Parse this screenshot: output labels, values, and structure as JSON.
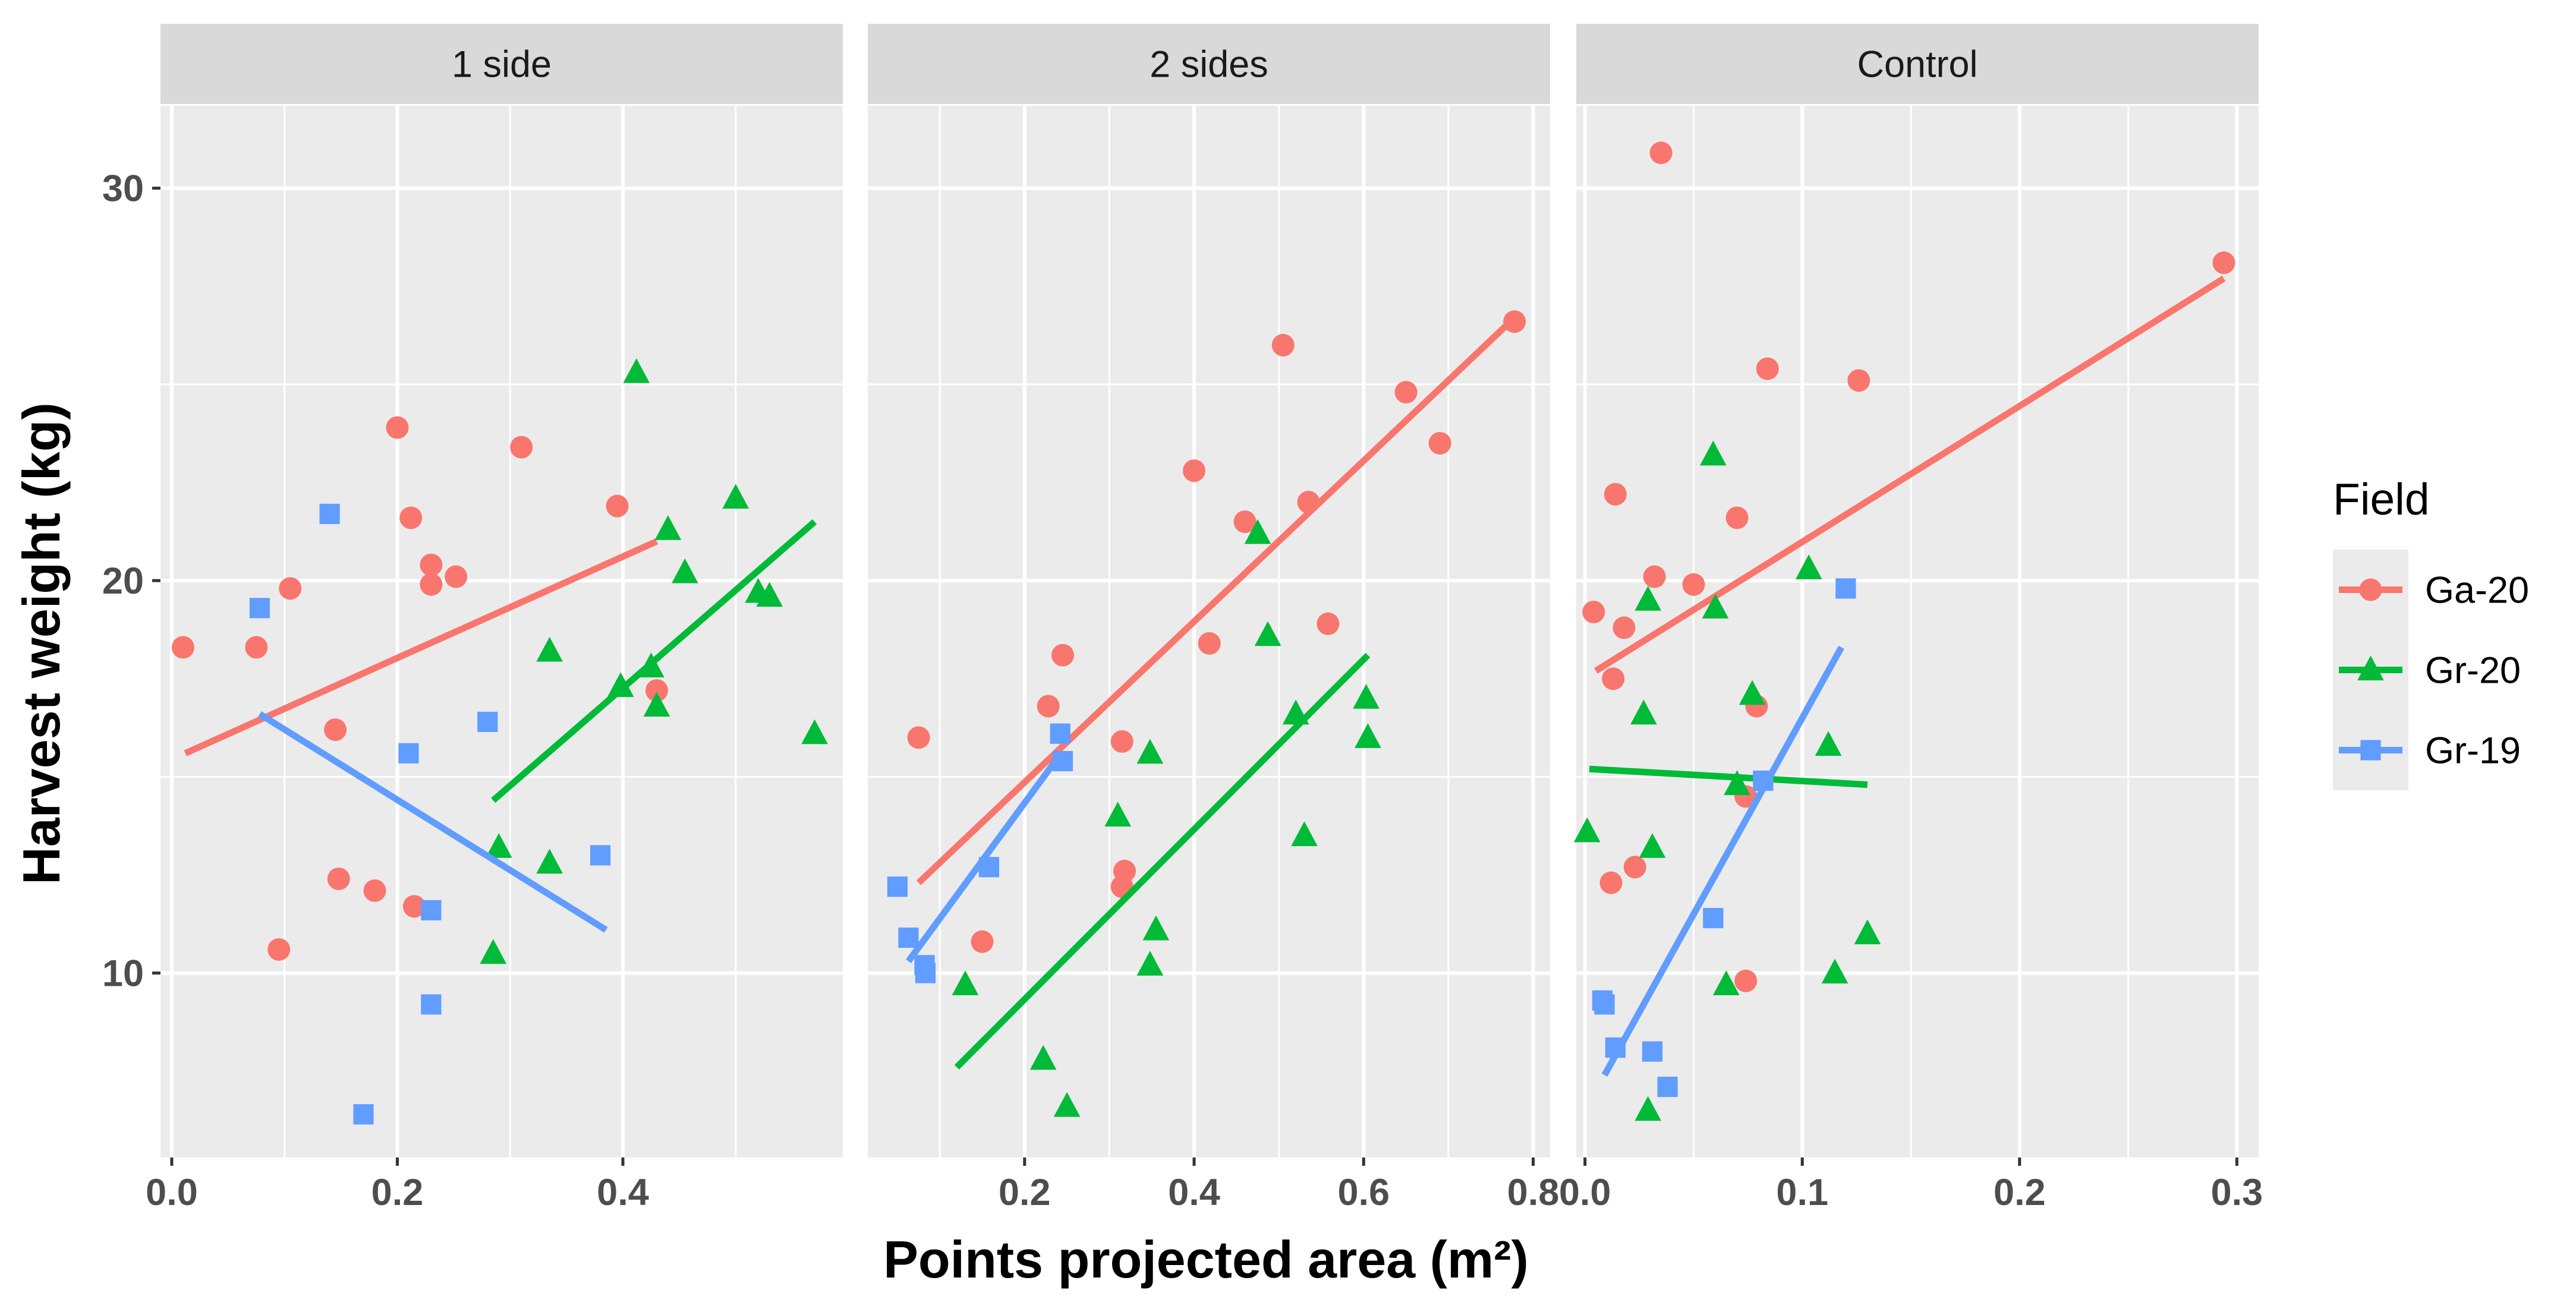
{
  "chart_data": {
    "type": "scatter",
    "xlabel": "Points projected area (m²)",
    "ylabel": "Harvest weight (kg)",
    "ylim": [
      5.3,
      32.1
    ],
    "yticks": [
      10,
      20,
      30
    ],
    "y_tick_labels": [
      "10",
      "20",
      "30"
    ],
    "grid": true,
    "legend": {
      "title": "Field",
      "position": "right",
      "entries": [
        {
          "label": "Ga-20",
          "color": "#F8766D",
          "shape": "circle"
        },
        {
          "label": "Gr-20",
          "color": "#00BA38",
          "shape": "triangle"
        },
        {
          "label": "Gr-19",
          "color": "#619CFF",
          "shape": "square"
        }
      ]
    },
    "panels": [
      {
        "title": "1 side",
        "xlim": [
          -0.01,
          0.595
        ],
        "xticks": [
          0.0,
          0.2,
          0.4
        ],
        "x_tick_labels": [
          "0.0",
          "0.2",
          "0.4"
        ],
        "series": [
          {
            "name": "Ga-20",
            "points": [
              [
                0.01,
                18.3
              ],
              [
                0.075,
                18.3
              ],
              [
                0.095,
                10.6
              ],
              [
                0.105,
                19.8
              ],
              [
                0.145,
                16.2
              ],
              [
                0.148,
                12.4
              ],
              [
                0.18,
                12.1
              ],
              [
                0.2,
                23.9
              ],
              [
                0.212,
                21.6
              ],
              [
                0.215,
                11.7
              ],
              [
                0.23,
                20.4
              ],
              [
                0.23,
                19.9
              ],
              [
                0.252,
                20.1
              ],
              [
                0.31,
                23.4
              ],
              [
                0.395,
                21.9
              ],
              [
                0.43,
                17.2
              ]
            ],
            "fit": [
              [
                0.012,
                15.6
              ],
              [
                0.43,
                21.0
              ]
            ]
          },
          {
            "name": "Gr-20",
            "points": [
              [
                0.285,
                10.5
              ],
              [
                0.29,
                13.2
              ],
              [
                0.335,
                12.8
              ],
              [
                0.335,
                18.2
              ],
              [
                0.398,
                17.3
              ],
              [
                0.412,
                25.3
              ],
              [
                0.425,
                17.8
              ],
              [
                0.43,
                16.8
              ],
              [
                0.44,
                21.3
              ],
              [
                0.455,
                20.2
              ],
              [
                0.5,
                22.1
              ],
              [
                0.52,
                19.7
              ],
              [
                0.53,
                19.6
              ],
              [
                0.57,
                16.1
              ]
            ],
            "fit": [
              [
                0.285,
                14.4
              ],
              [
                0.57,
                21.5
              ]
            ]
          },
          {
            "name": "Gr-19",
            "points": [
              [
                0.078,
                19.3
              ],
              [
                0.14,
                21.7
              ],
              [
                0.17,
                6.4
              ],
              [
                0.21,
                15.6
              ],
              [
                0.23,
                9.2
              ],
              [
                0.23,
                11.6
              ],
              [
                0.28,
                16.4
              ],
              [
                0.38,
                13.0
              ]
            ],
            "fit": [
              [
                0.078,
                16.6
              ],
              [
                0.385,
                11.1
              ]
            ]
          }
        ]
      },
      {
        "title": "2 sides",
        "xlim": [
          0.015,
          0.82
        ],
        "xticks": [
          0.2,
          0.4,
          0.6,
          0.8
        ],
        "x_tick_labels": [
          "0.2",
          "0.4",
          "0.6",
          "0.8"
        ],
        "series": [
          {
            "name": "Ga-20",
            "points": [
              [
                0.075,
                16.0
              ],
              [
                0.15,
                10.8
              ],
              [
                0.228,
                16.8
              ],
              [
                0.245,
                18.1
              ],
              [
                0.315,
                12.2
              ],
              [
                0.318,
                12.6
              ],
              [
                0.315,
                15.9
              ],
              [
                0.4,
                22.8
              ],
              [
                0.418,
                18.4
              ],
              [
                0.46,
                21.5
              ],
              [
                0.505,
                26.0
              ],
              [
                0.535,
                22.0
              ],
              [
                0.558,
                18.9
              ],
              [
                0.65,
                24.8
              ],
              [
                0.69,
                23.5
              ],
              [
                0.778,
                26.6
              ]
            ],
            "fit": [
              [
                0.075,
                12.3
              ],
              [
                0.778,
                26.7
              ]
            ]
          },
          {
            "name": "Gr-20",
            "points": [
              [
                0.13,
                9.7
              ],
              [
                0.222,
                7.8
              ],
              [
                0.25,
                6.6
              ],
              [
                0.31,
                14.0
              ],
              [
                0.348,
                15.6
              ],
              [
                0.348,
                10.2
              ],
              [
                0.355,
                11.1
              ],
              [
                0.475,
                21.2
              ],
              [
                0.487,
                18.6
              ],
              [
                0.52,
                16.6
              ],
              [
                0.53,
                13.5
              ],
              [
                0.603,
                17.0
              ],
              [
                0.605,
                16.0
              ]
            ],
            "fit": [
              [
                0.12,
                7.6
              ],
              [
                0.605,
                18.1
              ]
            ]
          },
          {
            "name": "Gr-19",
            "points": [
              [
                0.05,
                12.2
              ],
              [
                0.063,
                10.9
              ],
              [
                0.082,
                10.2
              ],
              [
                0.083,
                10.0
              ],
              [
                0.158,
                12.7
              ],
              [
                0.242,
                16.1
              ],
              [
                0.245,
                15.4
              ]
            ],
            "fit": [
              [
                0.063,
                10.3
              ],
              [
                0.243,
                15.6
              ]
            ]
          }
        ]
      },
      {
        "title": "Control",
        "xlim": [
          -0.004,
          0.31
        ],
        "xticks": [
          0.0,
          0.1,
          0.2,
          0.3
        ],
        "x_tick_labels": [
          "0.0",
          "0.1",
          "0.2",
          "0.3"
        ],
        "series": [
          {
            "name": "Ga-20",
            "points": [
              [
                0.004,
                19.2
              ],
              [
                0.012,
                12.3
              ],
              [
                0.013,
                17.5
              ],
              [
                0.014,
                22.2
              ],
              [
                0.018,
                18.8
              ],
              [
                0.023,
                12.7
              ],
              [
                0.032,
                20.1
              ],
              [
                0.035,
                30.9
              ],
              [
                0.05,
                19.9
              ],
              [
                0.07,
                21.6
              ],
              [
                0.074,
                14.5
              ],
              [
                0.074,
                9.8
              ],
              [
                0.079,
                16.8
              ],
              [
                0.084,
                25.4
              ],
              [
                0.126,
                25.1
              ],
              [
                0.294,
                28.1
              ]
            ],
            "fit": [
              [
                0.005,
                17.7
              ],
              [
                0.294,
                27.7
              ]
            ]
          },
          {
            "name": "Gr-20",
            "points": [
              [
                0.001,
                13.6
              ],
              [
                0.027,
                16.6
              ],
              [
                0.029,
                19.5
              ],
              [
                0.029,
                6.5
              ],
              [
                0.031,
                13.2
              ],
              [
                0.059,
                23.2
              ],
              [
                0.06,
                19.3
              ],
              [
                0.065,
                9.7
              ],
              [
                0.07,
                14.8
              ],
              [
                0.077,
                17.1
              ],
              [
                0.103,
                20.3
              ],
              [
                0.112,
                15.8
              ],
              [
                0.115,
                10.0
              ],
              [
                0.13,
                11.0
              ]
            ],
            "fit": [
              [
                0.002,
                15.2
              ],
              [
                0.13,
                14.8
              ]
            ]
          },
          {
            "name": "Gr-19",
            "points": [
              [
                0.008,
                9.3
              ],
              [
                0.009,
                9.2
              ],
              [
                0.014,
                8.1
              ],
              [
                0.031,
                8.0
              ],
              [
                0.038,
                7.1
              ],
              [
                0.059,
                11.4
              ],
              [
                0.082,
                14.9
              ],
              [
                0.12,
                19.8
              ]
            ],
            "fit": [
              [
                0.009,
                7.4
              ],
              [
                0.118,
                18.3
              ]
            ]
          }
        ]
      }
    ]
  }
}
